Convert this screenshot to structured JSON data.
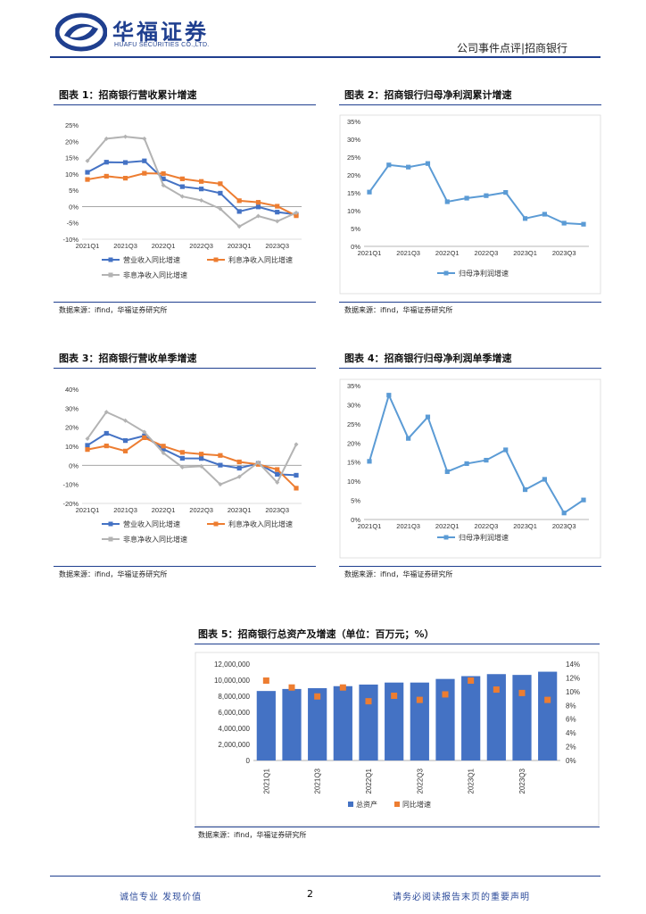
{
  "header": {
    "logo_cn": "华福证券",
    "logo_en": "HUAFU SECURITIES CO.,LTD.",
    "right_text": "公司事件点评|招商银行"
  },
  "colors": {
    "navy": "#1f3f8f",
    "blue": "#4472c4",
    "orange": "#ed7d31",
    "gray": "#b3b3b3",
    "lightblue": "#5b9bd5"
  },
  "figures": {
    "f1": {
      "title": "图表 1：招商银行营收累计增速",
      "source": "数据来源：ifind，华福证券研究所"
    },
    "f2": {
      "title": "图表 2：招商银行归母净利润累计增速",
      "source": "数据来源：ifind，华福证券研究所"
    },
    "f3": {
      "title": "图表 3：招商银行营收单季增速",
      "source": "数据来源：ifind，华福证券研究所"
    },
    "f4": {
      "title": "图表 4：招商银行归母净利润单季增速",
      "source": "数据来源：ifind，华福证券研究所"
    },
    "f5": {
      "title": "图表 5：招商银行总资产及增速（单位：百万元；%）",
      "source": "数据来源：ifind，华福证券研究所"
    }
  },
  "chart_data": [
    {
      "id": "c1",
      "type": "line",
      "x": [
        "2021Q1",
        "2021Q2",
        "2021Q3",
        "2021Q4",
        "2022Q1",
        "2022Q2",
        "2022Q3",
        "2022Q4",
        "2023Q1",
        "2023Q2",
        "2023Q3",
        "2023Q4"
      ],
      "xticks": [
        "2021Q1",
        "2021Q3",
        "2022Q1",
        "2022Q3",
        "2023Q1",
        "2023Q3"
      ],
      "yticks": [
        "-10%",
        "-5%",
        "0%",
        "5%",
        "10%",
        "15%",
        "20%",
        "25%"
      ],
      "ylim": [
        -10,
        25
      ],
      "series": [
        {
          "name": "营业收入同比增速",
          "color": "#4472c4",
          "values": [
            10.5,
            13.6,
            13.5,
            14.0,
            8.5,
            6.1,
            5.4,
            4.1,
            -1.5,
            -0.1,
            -1.7,
            -2.4
          ]
        },
        {
          "name": "利息净收入同比增速",
          "color": "#ed7d31",
          "values": [
            8.3,
            9.3,
            8.7,
            10.2,
            10.1,
            8.5,
            7.7,
            7.0,
            1.8,
            1.3,
            0.1,
            -2.8
          ]
        },
        {
          "name": "非息净收入同比增速",
          "color": "#b3b3b3",
          "values": [
            14.0,
            20.8,
            21.4,
            20.8,
            6.5,
            3.1,
            1.9,
            -0.7,
            -6.1,
            -2.9,
            -4.5,
            -1.9
          ]
        }
      ]
    },
    {
      "id": "c2",
      "type": "line",
      "x": [
        "2021Q1",
        "2021Q2",
        "2021Q3",
        "2021Q4",
        "2022Q1",
        "2022Q2",
        "2022Q3",
        "2022Q4",
        "2023Q1",
        "2023Q2",
        "2023Q3",
        "2023Q4"
      ],
      "xticks": [
        "2021Q1",
        "2021Q3",
        "2022Q1",
        "2022Q3",
        "2023Q1",
        "2023Q3"
      ],
      "yticks": [
        "0%",
        "5%",
        "10%",
        "15%",
        "20%",
        "25%",
        "30%",
        "35%"
      ],
      "ylim": [
        0,
        35
      ],
      "series": [
        {
          "name": "归母净利润增速",
          "color": "#5b9bd5",
          "values": [
            15.2,
            22.8,
            22.2,
            23.2,
            12.5,
            13.5,
            14.2,
            15.1,
            7.8,
            9.0,
            6.5,
            6.2
          ]
        }
      ]
    },
    {
      "id": "c3",
      "type": "line",
      "x": [
        "2021Q1",
        "2021Q2",
        "2021Q3",
        "2021Q4",
        "2022Q1",
        "2022Q2",
        "2022Q3",
        "2022Q4",
        "2023Q1",
        "2023Q2",
        "2023Q3",
        "2023Q4"
      ],
      "xticks": [
        "2021Q1",
        "2021Q3",
        "2022Q1",
        "2022Q3",
        "2023Q1",
        "2023Q3"
      ],
      "yticks": [
        "-20%",
        "-10%",
        "0%",
        "10%",
        "20%",
        "30%",
        "40%"
      ],
      "ylim": [
        -20,
        40
      ],
      "series": [
        {
          "name": "营业收入同比增速",
          "color": "#4472c4",
          "values": [
            10.5,
            16.8,
            13.0,
            15.5,
            8.5,
            3.7,
            3.6,
            0.1,
            -1.5,
            1.0,
            -4.7,
            -5.2
          ]
        },
        {
          "name": "利息净收入同比增速",
          "color": "#ed7d31",
          "values": [
            8.3,
            10.2,
            7.5,
            14.5,
            10.1,
            6.8,
            5.9,
            5.2,
            1.8,
            0.5,
            -2.2,
            -12.0
          ]
        },
        {
          "name": "非息净收入同比增速",
          "color": "#b3b3b3",
          "values": [
            14.0,
            28.0,
            23.5,
            17.5,
            6.5,
            -1.0,
            -0.5,
            -10.0,
            -6.0,
            1.5,
            -9.0,
            11.0
          ]
        }
      ]
    },
    {
      "id": "c4",
      "type": "line",
      "x": [
        "2021Q1",
        "2021Q2",
        "2021Q3",
        "2021Q4",
        "2022Q1",
        "2022Q2",
        "2022Q3",
        "2022Q4",
        "2023Q1",
        "2023Q2",
        "2023Q3",
        "2023Q4"
      ],
      "xticks": [
        "2021Q1",
        "2021Q3",
        "2022Q1",
        "2022Q3",
        "2023Q1",
        "2023Q3"
      ],
      "yticks": [
        "0%",
        "5%",
        "10%",
        "15%",
        "20%",
        "25%",
        "30%",
        "35%"
      ],
      "ylim": [
        0,
        35
      ],
      "series": [
        {
          "name": "归母净利润增速",
          "color": "#5b9bd5",
          "values": [
            15.2,
            32.5,
            21.2,
            26.8,
            12.5,
            14.6,
            15.5,
            18.2,
            7.8,
            10.5,
            1.7,
            5.1
          ]
        }
      ]
    },
    {
      "id": "c5",
      "type": "bar",
      "x": [
        "2021Q1",
        "2021Q2",
        "2021Q3",
        "2021Q4",
        "2022Q1",
        "2022Q2",
        "2022Q3",
        "2022Q4",
        "2023Q1",
        "2023Q2",
        "2023Q3",
        "2023Q4"
      ],
      "xticks": [
        "2021Q1",
        "2021Q3",
        "2022Q1",
        "2022Q3",
        "2023Q1",
        "2023Q3"
      ],
      "yticks_left": [
        "0",
        "2,000,000",
        "4,000,000",
        "6,000,000",
        "8,000,000",
        "10,000,000",
        "12,000,000"
      ],
      "yticks_right": [
        "0%",
        "2%",
        "4%",
        "6%",
        "8%",
        "10%",
        "12%",
        "14%"
      ],
      "ylim_left": [
        0,
        12000000
      ],
      "ylim_right": [
        0,
        14
      ],
      "series": [
        {
          "name": "总资产",
          "color": "#4472c4",
          "values": [
            8650000,
            8900000,
            9000000,
            9250000,
            9450000,
            9700000,
            9700000,
            10150000,
            10500000,
            10750000,
            10650000,
            11050000
          ]
        },
        {
          "name": "同比增速",
          "color": "#ed7d31",
          "values": [
            11.6,
            10.6,
            9.3,
            10.6,
            8.6,
            9.4,
            8.8,
            9.6,
            11.6,
            10.3,
            9.8,
            8.8
          ]
        }
      ]
    }
  ],
  "footer": {
    "left": "诚信专业  发现价值",
    "page": "2",
    "right": "请务必阅读报告末页的重要声明"
  }
}
